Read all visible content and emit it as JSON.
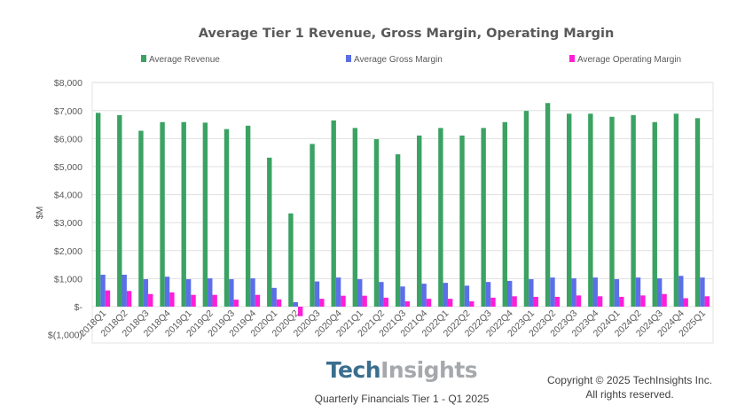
{
  "chart_data": {
    "type": "bar",
    "title": "Average Tier 1 Revenue, Gross Margin, Operating Margin",
    "xlabel": "",
    "ylabel": "$M",
    "ylim": [
      -1000,
      8000
    ],
    "yticks": [
      8000,
      7000,
      6000,
      5000,
      4000,
      3000,
      2000,
      1000,
      0,
      -1000
    ],
    "ytick_labels": [
      "$8,000",
      "$7,000",
      "$6,000",
      "$5,000",
      "$4,000",
      "$3,000",
      "$2,000",
      "$1,000",
      "$-",
      "$(1,000)"
    ],
    "grid": true,
    "legend_position": "top",
    "categories": [
      "2018Q1",
      "2018Q2",
      "2018Q3",
      "2018Q4",
      "2019Q1",
      "2019Q2",
      "2019Q3",
      "2019Q4",
      "2020Q1",
      "2020Q2",
      "2020Q3",
      "2020Q4",
      "2021Q1",
      "2021Q2",
      "2021Q3",
      "2021Q4",
      "2022Q1",
      "2022Q2",
      "2022Q3",
      "2022Q4",
      "2023Q1",
      "2023Q2",
      "2023Q3",
      "2023Q4",
      "2024Q1",
      "2024Q2",
      "2024Q3",
      "2024Q4",
      "2025Q1"
    ],
    "series": [
      {
        "name": "Average Revenue",
        "color": "#3ba263",
        "values": [
          6920,
          6840,
          6280,
          6590,
          6590,
          6570,
          6340,
          6460,
          5320,
          3330,
          5810,
          6650,
          6380,
          5980,
          5440,
          6110,
          6380,
          6110,
          6380,
          6590,
          6990,
          7270,
          6890,
          6890,
          6780,
          6840,
          6590,
          6890,
          6730
        ]
      },
      {
        "name": "Average Gross Margin",
        "color": "#5b6fe8",
        "values": [
          1140,
          1140,
          980,
          1070,
          980,
          1010,
          980,
          1010,
          670,
          160,
          900,
          1040,
          980,
          880,
          720,
          820,
          850,
          750,
          880,
          920,
          980,
          1040,
          1010,
          1040,
          980,
          1040,
          1010,
          1100,
          1040
        ]
      },
      {
        "name": "Average Operating Margin",
        "color": "#ff1ed8",
        "values": [
          580,
          560,
          450,
          510,
          420,
          420,
          250,
          420,
          260,
          -340,
          280,
          390,
          390,
          320,
          190,
          280,
          280,
          190,
          320,
          370,
          350,
          350,
          400,
          370,
          350,
          400,
          450,
          300,
          370
        ]
      }
    ]
  },
  "footer": {
    "logo_part1": "Tech",
    "logo_part2": "Insights",
    "subtitle": "Quarterly Financials Tier 1 - Q1 2025",
    "copyright_line1": "Copyright © 2025 TechInsights Inc.",
    "copyright_line2": "All rights reserved."
  }
}
